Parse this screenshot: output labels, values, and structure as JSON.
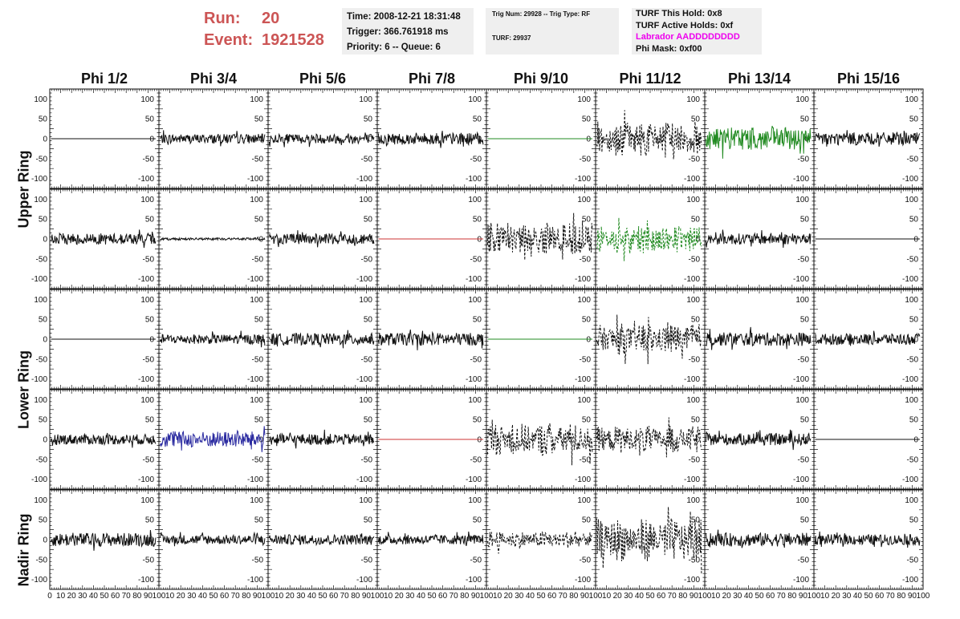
{
  "header": {
    "run_label": "Run:",
    "run_value": "20",
    "event_label": "Event:",
    "event_value": "1921528",
    "time_line": "Time: 2008-12-21 18:31:48",
    "trigger_line": "Trigger: 366.761918 ms",
    "priority_line": "Priority: 6 -- Queue: 6",
    "trig_line": "Trig Num: 29928 -- Trig Type: RF",
    "turf_line": "TURF: 29937",
    "turf_hold": "TURF This Hold: 0x8",
    "turf_active": "TURF Active Holds: 0xf",
    "labrador": "Labrador AADDDDDDDD",
    "phi_mask": "Phi Mask: 0xf00"
  },
  "columns": [
    "Phi 1/2",
    "Phi 3/4",
    "Phi 5/6",
    "Phi 7/8",
    "Phi 9/10",
    "Phi 11/12",
    "Phi 13/14",
    "Phi 15/16"
  ],
  "row_groups": [
    "Upper Ring",
    "Lower Ring",
    "Nadir Ring"
  ],
  "chart_data": {
    "type": "line",
    "grid": false,
    "xlim": [
      0,
      100
    ],
    "ylim": [
      -125,
      125
    ],
    "x_ticks": [
      0,
      10,
      20,
      30,
      40,
      50,
      60,
      70,
      80,
      90,
      100
    ],
    "y_ticks": [
      -100,
      -50,
      0,
      50,
      100
    ],
    "colors": {
      "black": "#111111",
      "green": "#228b22",
      "red": "#cc3333",
      "blue": "#2a2aa0"
    },
    "panels": [
      [
        {
          "amp": 0,
          "color": "black",
          "style": "solid"
        },
        {
          "amp": 12,
          "color": "black",
          "style": "solid"
        },
        {
          "amp": 12,
          "color": "black",
          "style": "solid"
        },
        {
          "amp": 15,
          "color": "black",
          "style": "solid"
        },
        {
          "amp": 0,
          "color": "green",
          "style": "solid"
        },
        {
          "amp": 45,
          "color": "black",
          "style": "dashed"
        },
        {
          "amp": 28,
          "color": "green",
          "style": "solid"
        },
        {
          "amp": 16,
          "color": "black",
          "style": "solid"
        }
      ],
      [
        {
          "amp": 14,
          "color": "black",
          "style": "solid"
        },
        {
          "amp": 3,
          "color": "black",
          "style": "solid"
        },
        {
          "amp": 13,
          "color": "black",
          "style": "solid"
        },
        {
          "amp": 0,
          "color": "red",
          "style": "solid"
        },
        {
          "amp": 42,
          "color": "black",
          "style": "dashed"
        },
        {
          "amp": 38,
          "color": "green",
          "style": "dashed"
        },
        {
          "amp": 14,
          "color": "black",
          "style": "solid"
        },
        {
          "amp": 0,
          "color": "black",
          "style": "solid"
        }
      ],
      [
        {
          "amp": 0,
          "color": "black",
          "style": "solid"
        },
        {
          "amp": 12,
          "color": "black",
          "style": "solid"
        },
        {
          "amp": 15,
          "color": "black",
          "style": "solid"
        },
        {
          "amp": 16,
          "color": "black",
          "style": "solid"
        },
        {
          "amp": 0,
          "color": "green",
          "style": "solid"
        },
        {
          "amp": 40,
          "color": "black",
          "style": "dashed"
        },
        {
          "amp": 17,
          "color": "black",
          "style": "solid"
        },
        {
          "amp": 14,
          "color": "black",
          "style": "solid"
        }
      ],
      [
        {
          "amp": 13,
          "color": "black",
          "style": "solid"
        },
        {
          "amp": 20,
          "color": "blue",
          "style": "solid"
        },
        {
          "amp": 14,
          "color": "black",
          "style": "solid"
        },
        {
          "amp": 0,
          "color": "red",
          "style": "solid"
        },
        {
          "amp": 42,
          "color": "black",
          "style": "dashed"
        },
        {
          "amp": 35,
          "color": "black",
          "style": "dashed"
        },
        {
          "amp": 15,
          "color": "black",
          "style": "solid"
        },
        {
          "amp": 0,
          "color": "black",
          "style": "solid"
        }
      ],
      [
        {
          "amp": 17,
          "color": "black",
          "style": "solid"
        },
        {
          "amp": 12,
          "color": "black",
          "style": "solid"
        },
        {
          "amp": 13,
          "color": "black",
          "style": "solid"
        },
        {
          "amp": 12,
          "color": "black",
          "style": "solid"
        },
        {
          "amp": 22,
          "color": "black",
          "style": "dashed"
        },
        {
          "amp": 55,
          "color": "black",
          "style": "dashed"
        },
        {
          "amp": 17,
          "color": "black",
          "style": "solid"
        },
        {
          "amp": 13,
          "color": "black",
          "style": "solid"
        }
      ]
    ]
  }
}
